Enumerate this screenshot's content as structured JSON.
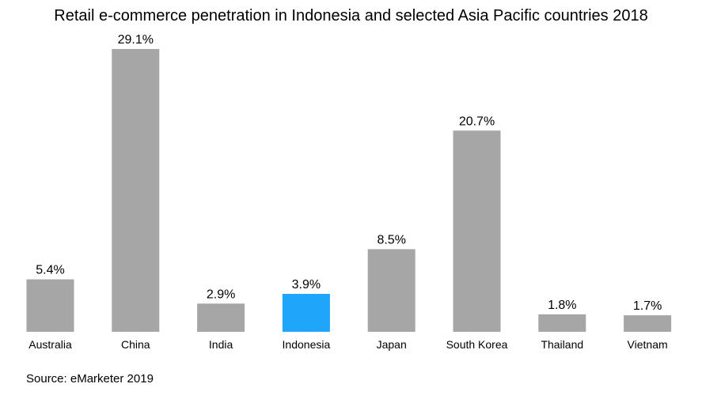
{
  "chart_data": {
    "type": "bar",
    "title": "Retail e-commerce penetration in Indonesia and selected Asia Pacific countries 2018",
    "categories": [
      "Australia",
      "China",
      "India",
      "Indonesia",
      "Japan",
      "South Korea",
      "Thailand",
      "Vietnam"
    ],
    "values": [
      5.4,
      29.1,
      2.9,
      3.9,
      8.5,
      20.7,
      1.8,
      1.7
    ],
    "value_labels": [
      "5.4%",
      "29.1%",
      "2.9%",
      "3.9%",
      "8.5%",
      "20.7%",
      "1.8%",
      "1.7%"
    ],
    "highlight_category": "Indonesia",
    "xlabel": "",
    "ylabel": "",
    "ylim": [
      0,
      29.1
    ],
    "grid": false,
    "colors": {
      "bar": "#a6a6a6",
      "highlight": "#1fa6fb"
    }
  },
  "source": "Source: eMarketer 2019"
}
